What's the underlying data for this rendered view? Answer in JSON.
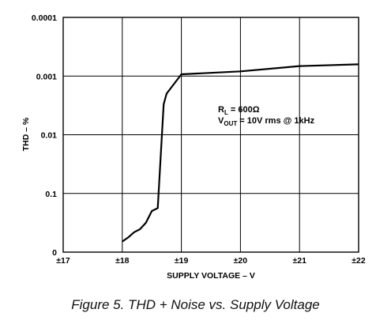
{
  "caption": "Figure 5. THD + Noise vs. Supply Voltage",
  "chart_data": {
    "type": "line",
    "title": "",
    "xlabel": "SUPPLY VOLTAGE – V",
    "ylabel": "THD – %",
    "x_ticks": [
      "±17",
      "±18",
      "±19",
      "±20",
      "±21",
      "±22"
    ],
    "y_ticks": [
      "0.0001",
      "0.001",
      "0.01",
      "0.1",
      "0"
    ],
    "xlim": [
      17,
      22
    ],
    "ylim_levels": [
      0,
      4
    ],
    "grid": true,
    "legend": "none",
    "annotation": {
      "rl_main": "R",
      "rl_sub": "L",
      "rl_rest": " = 600Ω",
      "vout_main": "V",
      "vout_sub": "OUT",
      "vout_rest": " = 10V rms @ 1kHz"
    },
    "series": [
      {
        "color": "#000000",
        "x": [
          18.0,
          18.1,
          18.2,
          18.3,
          18.4,
          18.5,
          18.6,
          18.7,
          18.75,
          19.0,
          20.0,
          21.0,
          22.0
        ],
        "y": [
          0.18,
          0.25,
          0.34,
          0.39,
          0.5,
          0.7,
          0.75,
          2.52,
          2.7,
          3.03,
          3.08,
          3.17,
          3.2
        ]
      }
    ]
  }
}
